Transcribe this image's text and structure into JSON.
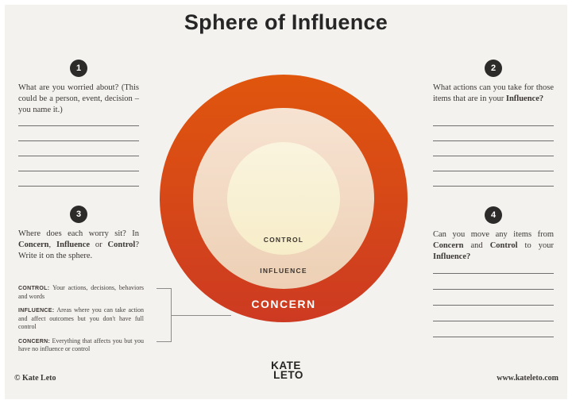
{
  "page": {
    "title": "Sphere of Influence"
  },
  "colors": {
    "page_background": "#f3f2ef",
    "frame": "#ffffff",
    "ink": "#3b3734",
    "badge": "#2d2b29",
    "concern_top": "#e0560d",
    "concern_bottom": "#cd3a22",
    "influence_top": "#f7e3d2",
    "influence_bottom": "#edd0b5",
    "control_top": "#faf4df",
    "control_bottom": "#f7edc9",
    "concern_label_text": "#ffffff",
    "write_line": "#6e6e6e",
    "connector": "#8b8b8b"
  },
  "questions": [
    {
      "number": "1",
      "segments": [
        {
          "t": "What are you worried about? (This could be a person, event, decision – you name it.)"
        }
      ],
      "write_lines": 5
    },
    {
      "number": "2",
      "segments": [
        {
          "t": "What actions can you take for those items that are in your "
        },
        {
          "t": "Influence?",
          "b": true
        }
      ],
      "write_lines": 5
    },
    {
      "number": "3",
      "segments": [
        {
          "t": "Where does each worry sit? In "
        },
        {
          "t": "Concern",
          "b": true
        },
        {
          "t": ", "
        },
        {
          "t": "Influence",
          "b": true
        },
        {
          "t": " or "
        },
        {
          "t": "Control",
          "b": true
        },
        {
          "t": "? Write it on the sphere."
        }
      ],
      "write_lines": 0
    },
    {
      "number": "4",
      "segments": [
        {
          "t": "Can you move any items from "
        },
        {
          "t": "Concern",
          "b": true
        },
        {
          "t": " and "
        },
        {
          "t": "Control",
          "b": true
        },
        {
          "t": " to your "
        },
        {
          "t": "Influence?",
          "b": true
        }
      ],
      "write_lines": 5
    }
  ],
  "sphere": {
    "rings": [
      {
        "label": "CONCERN"
      },
      {
        "label": "INFLUENCE"
      },
      {
        "label": "CONTROL"
      }
    ]
  },
  "legend": {
    "items": [
      {
        "term": "CONTROL:",
        "desc": "Your actions, decisions, behaviors and words"
      },
      {
        "term": "INFLUENCE:",
        "desc": "Areas where you can take action and affect outcomes but you don't have full control"
      },
      {
        "term": "CONCERN:",
        "desc": "Everything that affects you but you have no influence or control"
      }
    ]
  },
  "footer": {
    "copyright": "© Kate Leto",
    "logo_line1": "KATE",
    "logo_line2": "LETO",
    "website": "www.kateleto.com"
  }
}
